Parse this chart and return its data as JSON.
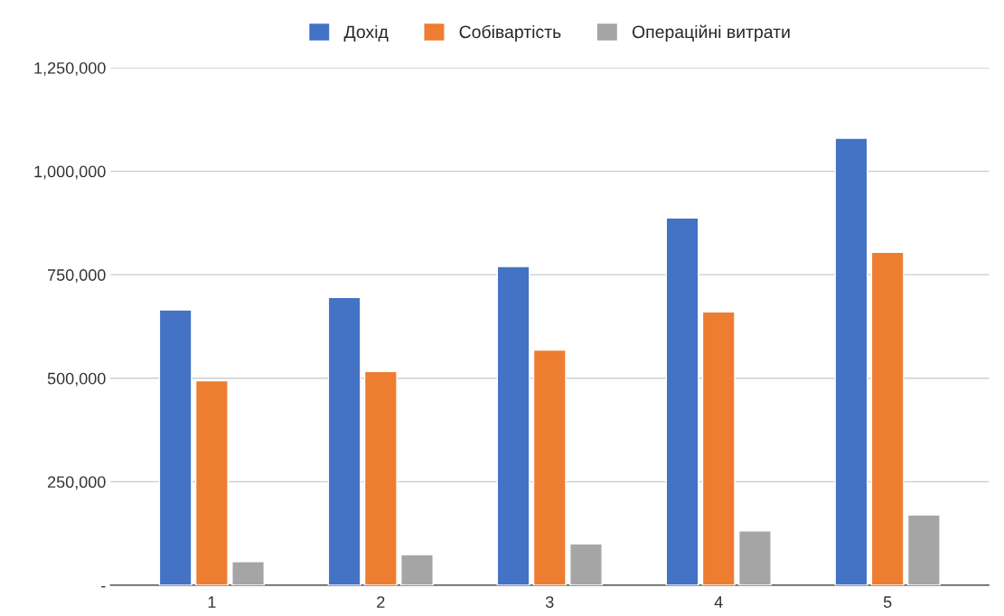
{
  "chart_data": {
    "type": "bar",
    "categories": [
      "1",
      "2",
      "3",
      "4",
      "5"
    ],
    "series": [
      {
        "name": "Дохід",
        "color": "#4472c4",
        "values": [
          665000,
          695000,
          770000,
          887000,
          1080000
        ]
      },
      {
        "name": "Собівартість",
        "color": "#ed7d31",
        "values": [
          494000,
          516000,
          568000,
          660000,
          804000
        ]
      },
      {
        "name": "Операційні витрати",
        "color": "#a5a5a5",
        "values": [
          57000,
          74000,
          100000,
          131000,
          170000
        ]
      }
    ],
    "ylim": [
      0,
      1250000
    ],
    "yticks": [
      {
        "value": 0,
        "label": "-"
      },
      {
        "value": 250000,
        "label": "250,000"
      },
      {
        "value": 500000,
        "label": "500,000"
      },
      {
        "value": 750000,
        "label": "750,000"
      },
      {
        "value": 1000000,
        "label": "1,000,000"
      },
      {
        "value": 1250000,
        "label": "1,250,000"
      }
    ],
    "grid": "y",
    "legend": "top"
  }
}
